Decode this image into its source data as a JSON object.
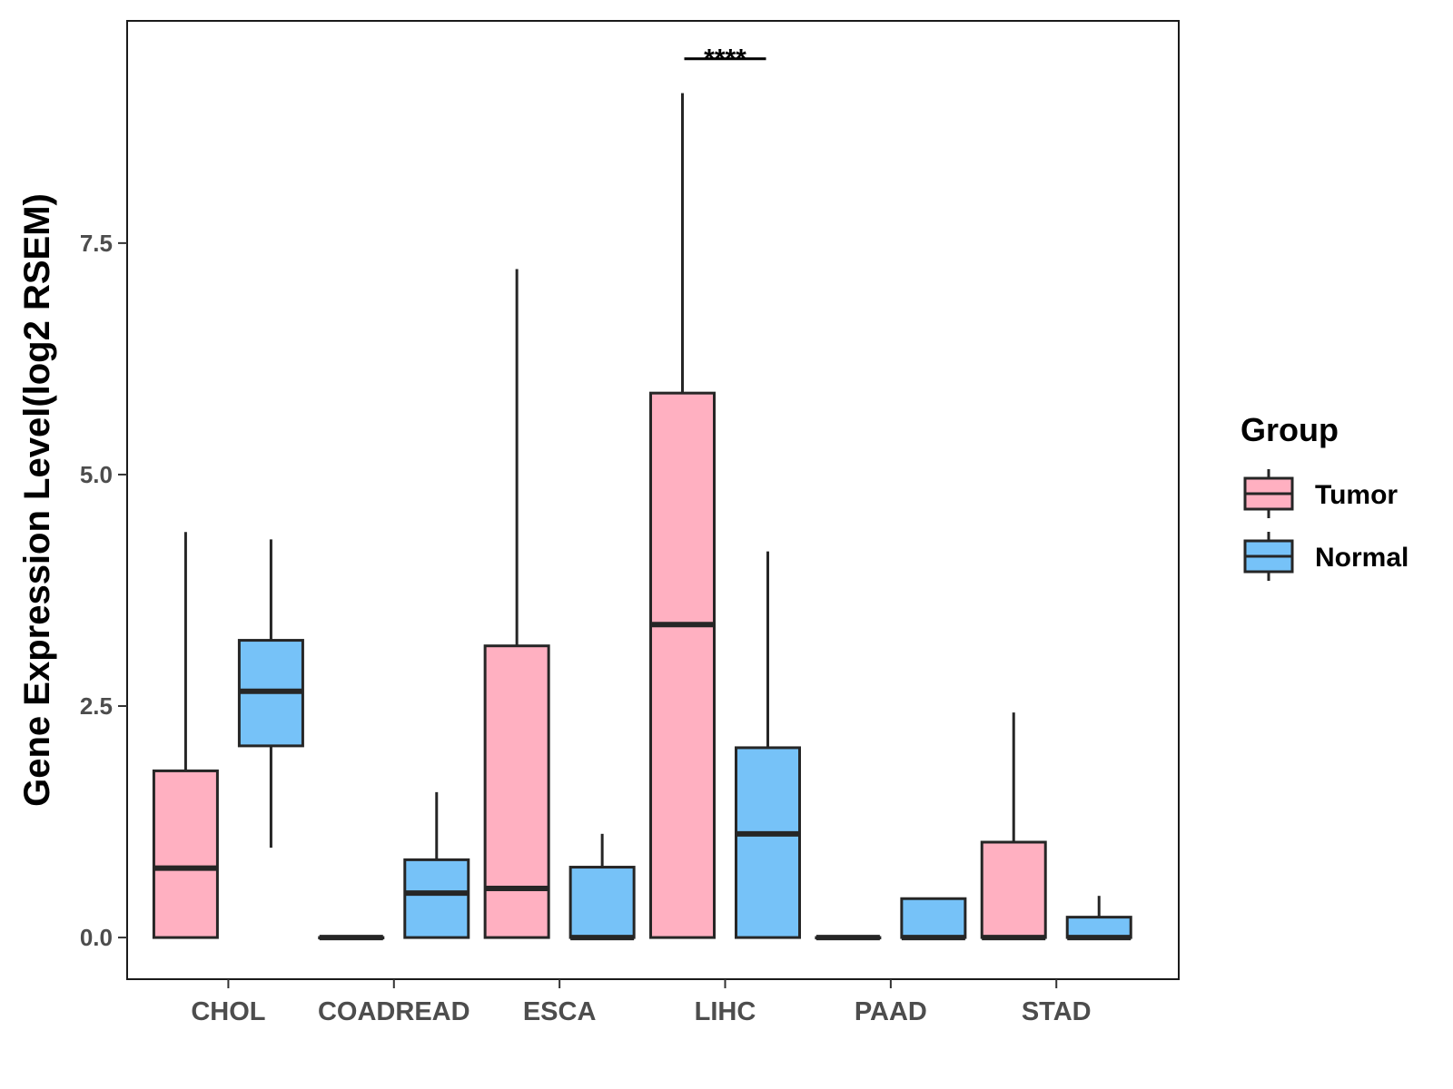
{
  "chart_data": {
    "type": "box",
    "title": "",
    "xlabel": "",
    "ylabel": "Gene Expression Level(log2 RSEM)",
    "ylim": [
      -0.45,
      9.9
    ],
    "yticks": [
      0.0,
      2.5,
      5.0,
      7.5
    ],
    "ytick_labels": [
      "0.0",
      "2.5",
      "5.0",
      "7.5"
    ],
    "categories": [
      "CHOL",
      "COADREAD",
      "ESCA",
      "LIHC",
      "PAAD",
      "STAD"
    ],
    "grid": false,
    "legend": {
      "title": "Group",
      "position": "right",
      "entries": [
        "Tumor",
        "Normal"
      ]
    },
    "series": [
      {
        "name": "Tumor",
        "color": "#FFB0C1",
        "boxes": [
          {
            "category": "CHOL",
            "whisker_low": 0.0,
            "q1": 0.0,
            "median": 0.75,
            "q3": 1.8,
            "whisker_high": 4.38
          },
          {
            "category": "COADREAD",
            "whisker_low": 0.0,
            "q1": 0.0,
            "median": 0.0,
            "q3": 0.0,
            "whisker_high": 0.0
          },
          {
            "category": "ESCA",
            "whisker_low": 0.0,
            "q1": 0.0,
            "median": 0.53,
            "q3": 3.15,
            "whisker_high": 7.22
          },
          {
            "category": "LIHC",
            "whisker_low": 0.0,
            "q1": 0.0,
            "median": 3.38,
            "q3": 5.88,
            "whisker_high": 9.12
          },
          {
            "category": "PAAD",
            "whisker_low": 0.0,
            "q1": 0.0,
            "median": 0.0,
            "q3": 0.0,
            "whisker_high": 0.0
          },
          {
            "category": "STAD",
            "whisker_low": 0.0,
            "q1": 0.0,
            "median": 0.0,
            "q3": 1.03,
            "whisker_high": 2.43
          }
        ]
      },
      {
        "name": "Normal",
        "color": "#76C2F8",
        "boxes": [
          {
            "category": "CHOL",
            "whisker_low": 0.97,
            "q1": 2.07,
            "median": 2.66,
            "q3": 3.21,
            "whisker_high": 4.3
          },
          {
            "category": "COADREAD",
            "whisker_low": 0.0,
            "q1": 0.0,
            "median": 0.48,
            "q3": 0.84,
            "whisker_high": 1.57
          },
          {
            "category": "ESCA",
            "whisker_low": 0.0,
            "q1": 0.0,
            "median": 0.0,
            "q3": 0.76,
            "whisker_high": 1.12
          },
          {
            "category": "LIHC",
            "whisker_low": 0.0,
            "q1": 0.0,
            "median": 1.12,
            "q3": 2.05,
            "whisker_high": 4.17
          },
          {
            "category": "PAAD",
            "whisker_low": 0.0,
            "q1": 0.0,
            "median": 0.0,
            "q3": 0.42,
            "whisker_high": 0.42
          },
          {
            "category": "STAD",
            "whisker_low": 0.0,
            "q1": 0.0,
            "median": 0.0,
            "q3": 0.22,
            "whisker_high": 0.45
          }
        ]
      }
    ],
    "annotations": [
      {
        "category": "LIHC",
        "label": "****",
        "y": 9.55
      }
    ]
  }
}
